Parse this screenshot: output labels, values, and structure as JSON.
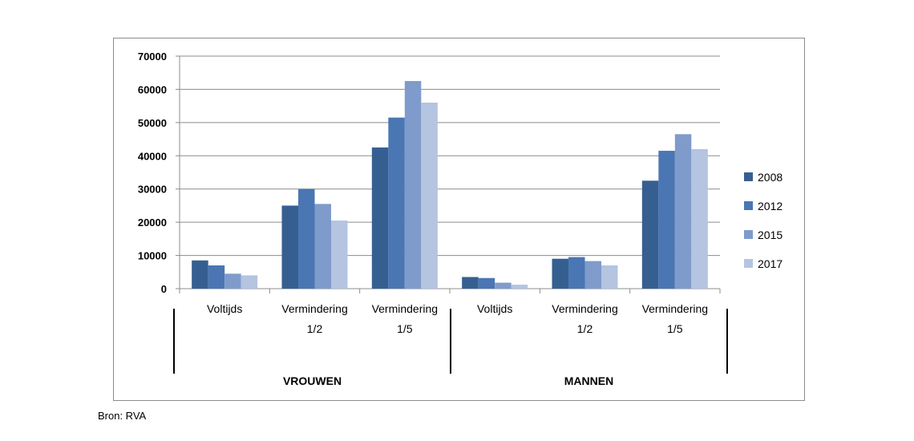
{
  "chart_data": {
    "type": "bar",
    "title": "",
    "xlabel": "",
    "ylabel": "",
    "ylim": [
      0,
      70000
    ],
    "yticks": [
      "0",
      "10000",
      "20000",
      "30000",
      "40000",
      "50000",
      "60000",
      "70000"
    ],
    "grid": true,
    "legend_position": "right",
    "groups": [
      {
        "label": "VROUWEN",
        "categories": [
          [
            "Voltijds"
          ],
          [
            "Vermindering",
            "1/2"
          ],
          [
            "Vermindering",
            "1/5"
          ]
        ]
      },
      {
        "label": "MANNEN",
        "categories": [
          [
            "Voltijds"
          ],
          [
            "Vermindering",
            "1/2"
          ],
          [
            "Vermindering",
            "1/5"
          ]
        ]
      }
    ],
    "series": [
      {
        "name": "2008",
        "color": "#365f91",
        "values": [
          8500,
          25000,
          42500,
          3500,
          9000,
          32500
        ]
      },
      {
        "name": "2012",
        "color": "#4a76b3",
        "values": [
          7000,
          30000,
          51500,
          3200,
          9500,
          41500
        ]
      },
      {
        "name": "2015",
        "color": "#7f9bcb",
        "values": [
          4500,
          25500,
          62500,
          1800,
          8300,
          46500
        ]
      },
      {
        "name": "2017",
        "color": "#b4c4e1",
        "values": [
          4000,
          20500,
          56000,
          1200,
          7000,
          42000
        ]
      }
    ]
  },
  "source": "Bron: RVA"
}
